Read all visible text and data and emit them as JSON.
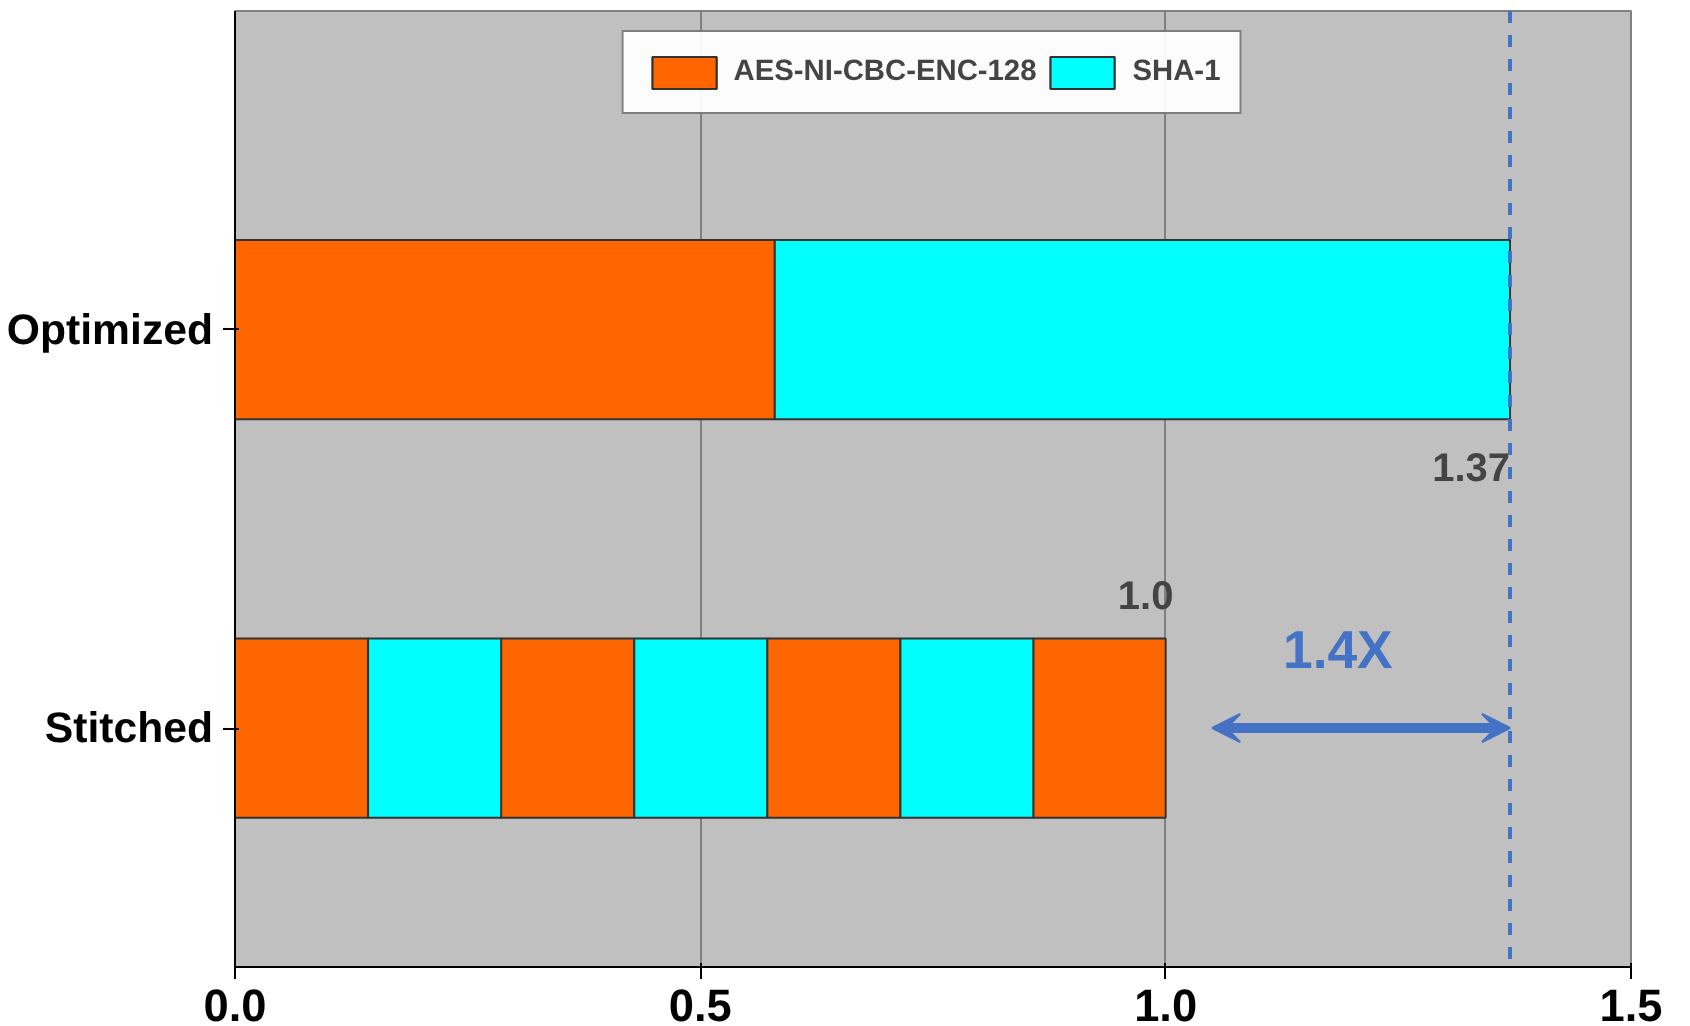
{
  "chart_data": {
    "type": "bar",
    "orientation": "horizontal",
    "stacked": true,
    "categories": [
      "Optimized",
      "Stitched"
    ],
    "series": [
      {
        "name": "AES-NI-CBC-ENC-128",
        "color": "#ff6600",
        "values": [
          0.58,
          0.143
        ]
      },
      {
        "name": "SHA-1",
        "color": "#00ffff",
        "values": [
          0.79,
          0.143
        ]
      },
      {
        "color": "#ff6600",
        "values": [
          null,
          0.143
        ]
      },
      {
        "color": "#00ffff",
        "values": [
          null,
          0.143
        ]
      },
      {
        "color": "#ff6600",
        "values": [
          null,
          0.143
        ]
      },
      {
        "color": "#00ffff",
        "values": [
          null,
          0.143
        ]
      },
      {
        "color": "#ff6600",
        "values": [
          null,
          0.142
        ]
      }
    ],
    "xlim": [
      0,
      1.5
    ],
    "xticks": [
      {
        "value": 0,
        "label": "0.0"
      },
      {
        "value": 0.5,
        "label": "0.5"
      },
      {
        "value": 1.0,
        "label": "1.0"
      },
      {
        "value": 1.5,
        "label": "1.5"
      }
    ],
    "totals": [
      "1.37",
      "1.0"
    ],
    "ref_lines": [
      {
        "axis": "x",
        "value": 1.37,
        "color": "#4472c4",
        "line_style": "dashed"
      }
    ],
    "annotations": [
      "1.4X"
    ],
    "grid": "x",
    "legend": "top"
  }
}
